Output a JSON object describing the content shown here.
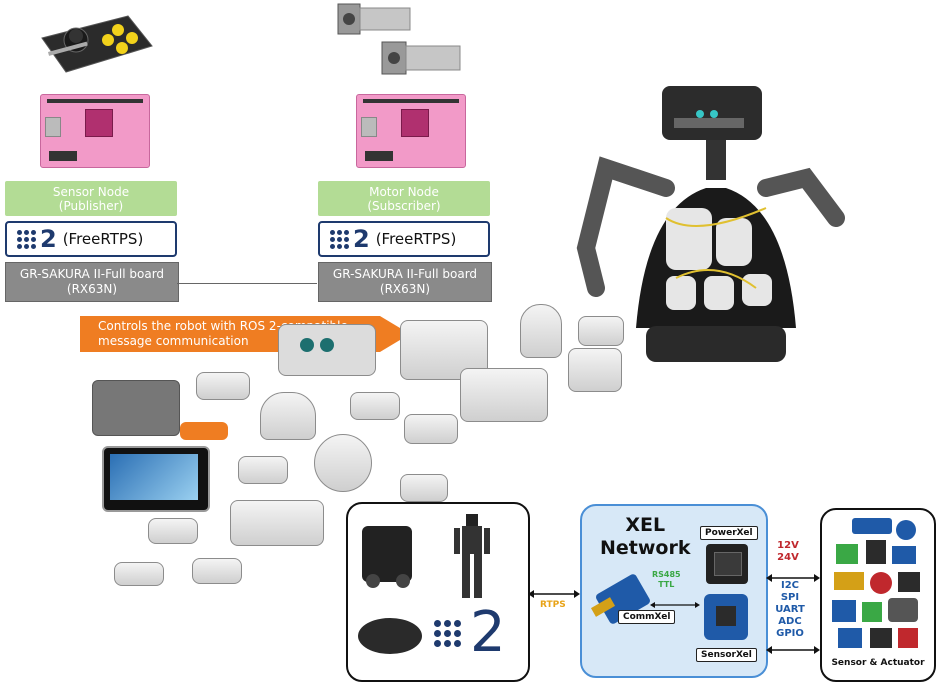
{
  "left_stack": {
    "node_label_line1": "Sensor Node",
    "node_label_line2": "(Publisher)",
    "ros_two": "2",
    "ros_label": "(FreeRTPS)",
    "board_line1": "GR-SAKURA II-Full board",
    "board_line2": "(RX63N)"
  },
  "right_stack": {
    "node_label_line1": "Motor Node",
    "node_label_line2": "(Subscriber)",
    "ros_two": "2",
    "ros_label": "(FreeRTPS)",
    "board_line1": "GR-SAKURA II-Full board",
    "board_line2": "(RX63N)"
  },
  "banner": {
    "line1": "Controls the robot with ROS 2-compatible",
    "line2": "message communication"
  },
  "robot_panel": {
    "ros_two": "2"
  },
  "xel_panel": {
    "title_line1": "XEL",
    "title_line2": "Network",
    "power": "PowerXel",
    "comm": "CommXel",
    "sensor": "SensorXel",
    "rs485_line1": "RS485",
    "rs485_line2": "TTL"
  },
  "links": {
    "rtps": "RTPS",
    "volt_12": "12V",
    "volt_24": "24V",
    "protocols": [
      "I2C",
      "SPI",
      "UART",
      "ADC",
      "GPIO"
    ]
  },
  "sensor_panel": {
    "label": "Sensor & Actuator"
  },
  "colors": {
    "ros_blue": "#1e3a6e",
    "node_green": "#b3dc95",
    "board_gray": "#8a8a8a",
    "banner_orange": "#ef7d22",
    "xel_blue": "#d7e8f7",
    "rtps_yellow": "#e8a317",
    "voltage_red": "#c0282d",
    "protocol_blue": "#1f5aa8"
  }
}
